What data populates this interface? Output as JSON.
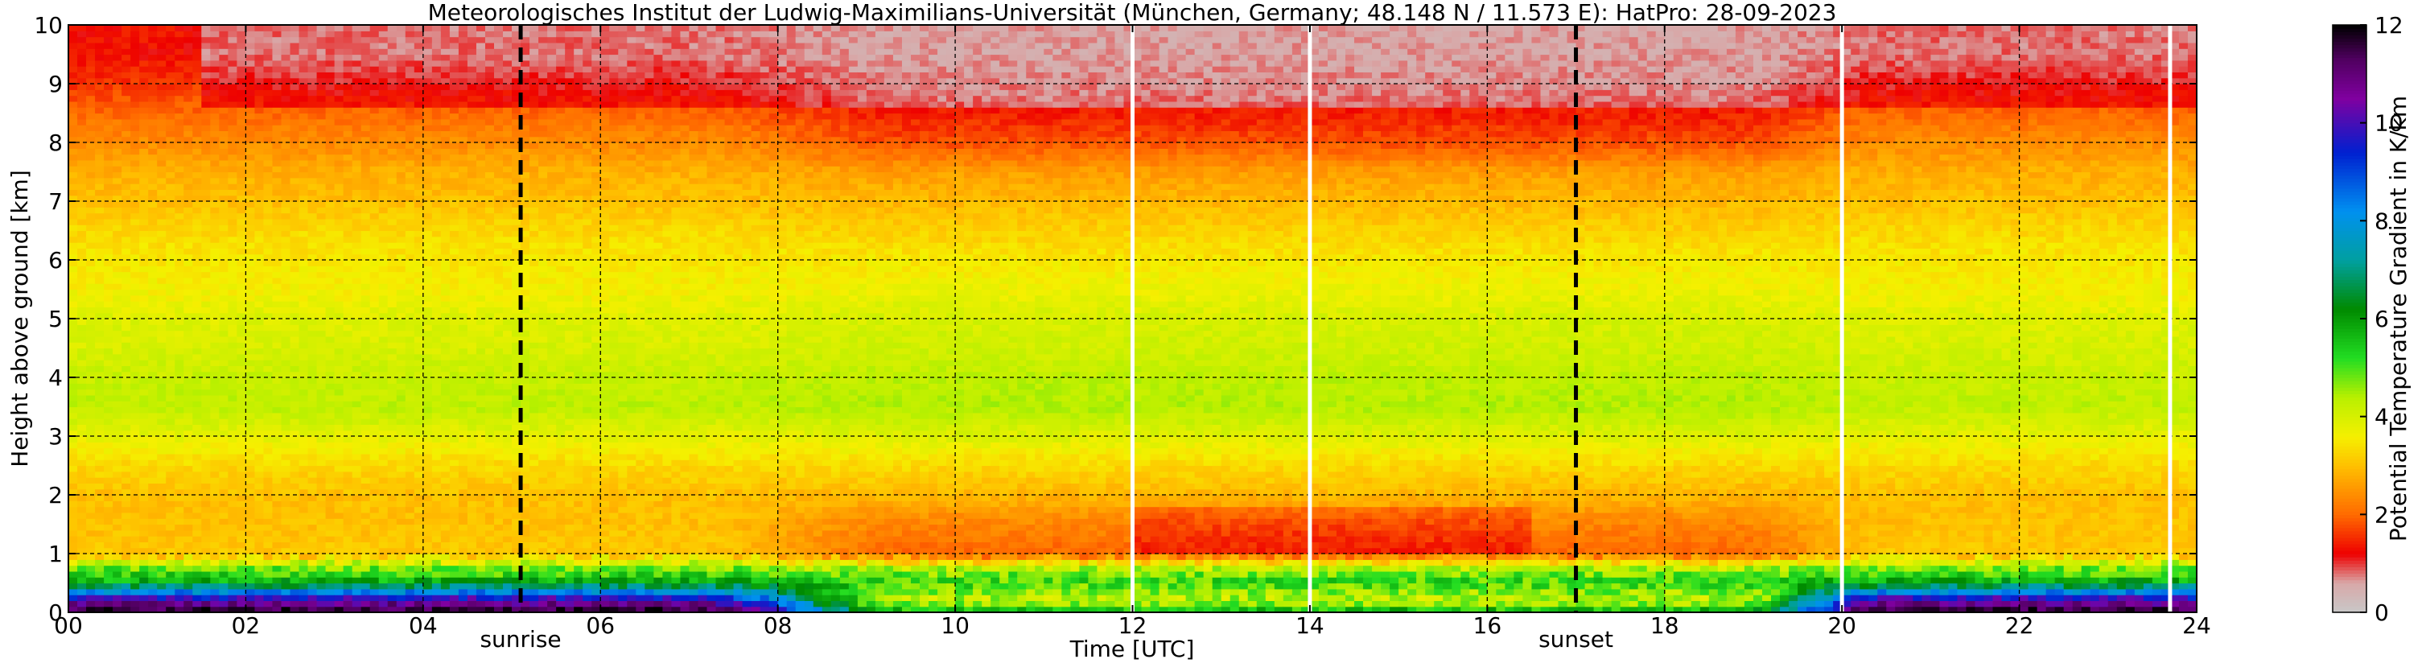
{
  "chart_data": {
    "type": "heatmap",
    "title": "Meteorologisches Institut der Ludwig-Maximilians-Universität (München, Germany; 48.148 N / 11.573 E):    HatPro: 28-09-2023",
    "xlabel": "Time [UTC]",
    "ylabel": "Height above ground [km]",
    "xlim": [
      0,
      24
    ],
    "ylim": [
      0,
      10
    ],
    "x_ticks": [
      0,
      2,
      4,
      6,
      8,
      10,
      12,
      14,
      16,
      18,
      20,
      22,
      24
    ],
    "x_tick_labels": [
      "00",
      "02",
      "04",
      "06",
      "08",
      "10",
      "12",
      "14",
      "16",
      "18",
      "20",
      "22",
      "24"
    ],
    "y_ticks": [
      0,
      1,
      2,
      3,
      4,
      5,
      6,
      7,
      8,
      9,
      10
    ],
    "y_tick_labels": [
      "0",
      "1",
      "2",
      "3",
      "4",
      "5",
      "6",
      "7",
      "8",
      "9",
      "10"
    ],
    "grid": true,
    "colorbar": {
      "label": "Potential Temperature Gradient in K/km",
      "range": [
        0,
        12
      ],
      "ticks": [
        0,
        2,
        4,
        6,
        8,
        10,
        12
      ],
      "tick_labels": [
        "0",
        "2",
        "4",
        "6",
        "8",
        "10",
        "12"
      ],
      "stops": [
        {
          "value": 0,
          "color": "#c8c8c8"
        },
        {
          "value": 0.6,
          "color": "#d8a8a8"
        },
        {
          "value": 1.2,
          "color": "#ee0000"
        },
        {
          "value": 2.0,
          "color": "#ff6a00"
        },
        {
          "value": 3.0,
          "color": "#ffc000"
        },
        {
          "value": 3.6,
          "color": "#f5f000"
        },
        {
          "value": 4.4,
          "color": "#b8f000"
        },
        {
          "value": 5.2,
          "color": "#22dd22"
        },
        {
          "value": 6.2,
          "color": "#008a00"
        },
        {
          "value": 7.2,
          "color": "#00a0a0"
        },
        {
          "value": 8.2,
          "color": "#0090f0"
        },
        {
          "value": 9.4,
          "color": "#0020d0"
        },
        {
          "value": 10.5,
          "color": "#8000a0"
        },
        {
          "value": 11.3,
          "color": "#500060"
        },
        {
          "value": 12,
          "color": "#000000"
        }
      ]
    },
    "events": [
      {
        "label": "sunrise",
        "time": 5.1
      },
      {
        "label": "sunset",
        "time": 17.0
      }
    ],
    "data_gaps": [
      12.0,
      14.0,
      20.0,
      23.7
    ],
    "profile": {
      "heights_km": [
        0.0,
        0.1,
        0.2,
        0.3,
        0.4,
        0.5,
        0.6,
        0.7,
        0.8,
        0.9,
        1.0,
        1.5,
        2.0,
        2.5,
        3.0,
        3.5,
        4.0,
        4.5,
        5.0,
        5.5,
        6.0,
        6.5,
        7.0,
        7.5,
        8.0,
        8.5,
        9.0,
        9.5,
        10.0
      ],
      "night_K_per_km": [
        12.0,
        11.0,
        10.5,
        9.0,
        7.5,
        6.2,
        5.4,
        5.0,
        4.6,
        3.6,
        3.1,
        3.0,
        3.0,
        3.3,
        3.8,
        4.3,
        4.2,
        4.0,
        3.9,
        3.6,
        3.5,
        3.3,
        3.0,
        2.8,
        2.4,
        2.0,
        1.6,
        1.3,
        1.3
      ],
      "day_K_per_km": [
        6.0,
        5.0,
        4.3,
        4.4,
        4.8,
        5.2,
        5.0,
        4.6,
        4.0,
        2.9,
        2.0,
        2.3,
        2.9,
        3.3,
        3.9,
        4.4,
        4.3,
        4.1,
        4.0,
        3.7,
        3.5,
        3.2,
        2.9,
        2.6,
        1.8,
        1.4,
        1.2,
        1.1,
        1.1
      ]
    }
  }
}
